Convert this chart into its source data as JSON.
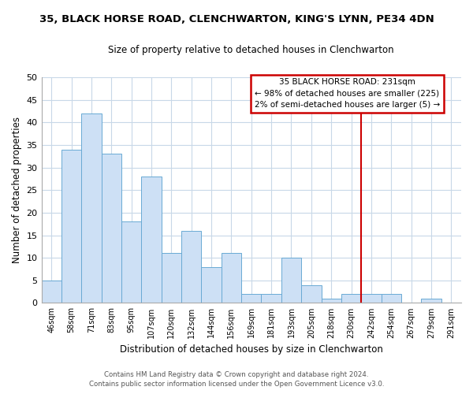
{
  "title": "35, BLACK HORSE ROAD, CLENCHWARTON, KING'S LYNN, PE34 4DN",
  "subtitle": "Size of property relative to detached houses in Clenchwarton",
  "xlabel": "Distribution of detached houses by size in Clenchwarton",
  "ylabel": "Number of detached properties",
  "bar_labels": [
    "46sqm",
    "58sqm",
    "71sqm",
    "83sqm",
    "95sqm",
    "107sqm",
    "120sqm",
    "132sqm",
    "144sqm",
    "156sqm",
    "169sqm",
    "181sqm",
    "193sqm",
    "205sqm",
    "218sqm",
    "230sqm",
    "242sqm",
    "254sqm",
    "267sqm",
    "279sqm",
    "291sqm"
  ],
  "bar_values": [
    5,
    34,
    42,
    33,
    18,
    28,
    11,
    16,
    8,
    11,
    2,
    2,
    10,
    4,
    1,
    2,
    2,
    2,
    0,
    1,
    0
  ],
  "bar_color": "#cde0f5",
  "bar_edge_color": "#6aaad4",
  "ylim": [
    0,
    50
  ],
  "yticks": [
    0,
    5,
    10,
    15,
    20,
    25,
    30,
    35,
    40,
    45,
    50
  ],
  "vline_color": "#cc0000",
  "annotation_title": "35 BLACK HORSE ROAD: 231sqm",
  "annotation_line1": "← 98% of detached houses are smaller (225)",
  "annotation_line2": "2% of semi-detached houses are larger (5) →",
  "annotation_box_color": "#ffffff",
  "annotation_box_edge": "#cc0000",
  "footer1": "Contains HM Land Registry data © Crown copyright and database right 2024.",
  "footer2": "Contains public sector information licensed under the Open Government Licence v3.0.",
  "background_color": "#ffffff",
  "grid_color": "#c8d8e8"
}
